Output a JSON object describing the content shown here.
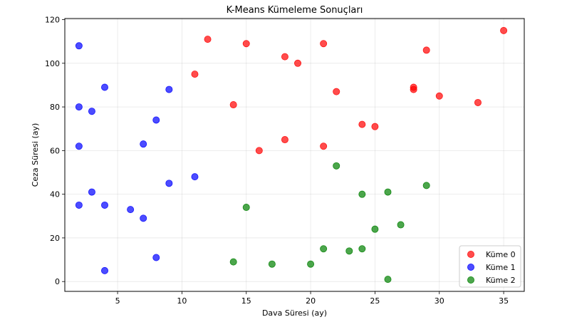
{
  "chart_data": {
    "type": "scatter",
    "title": "K-Means Kümeleme Sonuçları",
    "xlabel": "Dava Süresi (ay)",
    "ylabel": "Ceza Süresi (ay)",
    "xlim": [
      0.9,
      36.6
    ],
    "ylim": [
      -4.5,
      120.5
    ],
    "xticks": [
      5,
      10,
      15,
      20,
      25,
      30,
      35
    ],
    "yticks": [
      0,
      20,
      40,
      60,
      80,
      100,
      120
    ],
    "grid": true,
    "legend_position": "bottom-right",
    "series": [
      {
        "name": "Küme 0",
        "color": "#ff0000",
        "points": [
          [
            12,
            111
          ],
          [
            15,
            109
          ],
          [
            21,
            109
          ],
          [
            35,
            115
          ],
          [
            18,
            103
          ],
          [
            19,
            100
          ],
          [
            29,
            106
          ],
          [
            11,
            95
          ],
          [
            22,
            87
          ],
          [
            28,
            89
          ],
          [
            28,
            88
          ],
          [
            30,
            85
          ],
          [
            33,
            82
          ],
          [
            14,
            81
          ],
          [
            24,
            72
          ],
          [
            25,
            71
          ],
          [
            18,
            65
          ],
          [
            16,
            60
          ],
          [
            21,
            62
          ]
        ]
      },
      {
        "name": "Küme 1",
        "color": "#0000ff",
        "points": [
          [
            2,
            108
          ],
          [
            4,
            89
          ],
          [
            9,
            88
          ],
          [
            2,
            80
          ],
          [
            3,
            78
          ],
          [
            8,
            74
          ],
          [
            2,
            62
          ],
          [
            7,
            63
          ],
          [
            11,
            48
          ],
          [
            9,
            45
          ],
          [
            3,
            41
          ],
          [
            2,
            35
          ],
          [
            4,
            35
          ],
          [
            6,
            33
          ],
          [
            7,
            29
          ],
          [
            8,
            11
          ],
          [
            4,
            5
          ]
        ]
      },
      {
        "name": "Küme 2",
        "color": "#008000",
        "points": [
          [
            22,
            53
          ],
          [
            24,
            40
          ],
          [
            26,
            41
          ],
          [
            29,
            44
          ],
          [
            15,
            34
          ],
          [
            25,
            24
          ],
          [
            27,
            26
          ],
          [
            21,
            15
          ],
          [
            23,
            14
          ],
          [
            24,
            15
          ],
          [
            14,
            9
          ],
          [
            17,
            8
          ],
          [
            20,
            8
          ],
          [
            26,
            1
          ]
        ]
      }
    ]
  }
}
